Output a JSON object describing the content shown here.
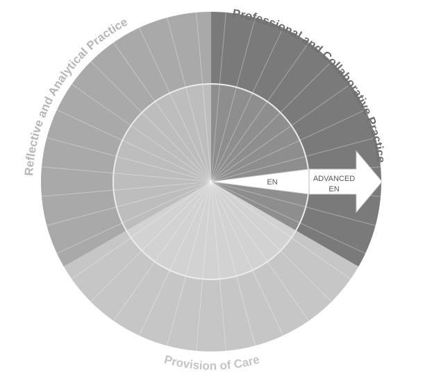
{
  "diagram": {
    "sectors": [
      {
        "key": "professional",
        "label": "Professional and Collaborative Practice",
        "outer_color": "#7a7a7a",
        "inner_color": "#8e8e8e",
        "label_color": "#6e6e6e"
      },
      {
        "key": "provision",
        "label": "Provision of Care",
        "outer_color": "#c6c6c6",
        "inner_color": "#d2d2d2",
        "label_color": "#c4c4c4"
      },
      {
        "key": "reflective",
        "label": "Reflective and Analytical Practice",
        "outer_color": "#a9a9a9",
        "inner_color": "#bdbdbd",
        "label_color": "#b6b6b6"
      }
    ],
    "arrow": {
      "inner_label": "EN",
      "outer_label_line1": "ADVANCED",
      "outer_label_line2": "EN",
      "color": "#ffffff"
    }
  }
}
